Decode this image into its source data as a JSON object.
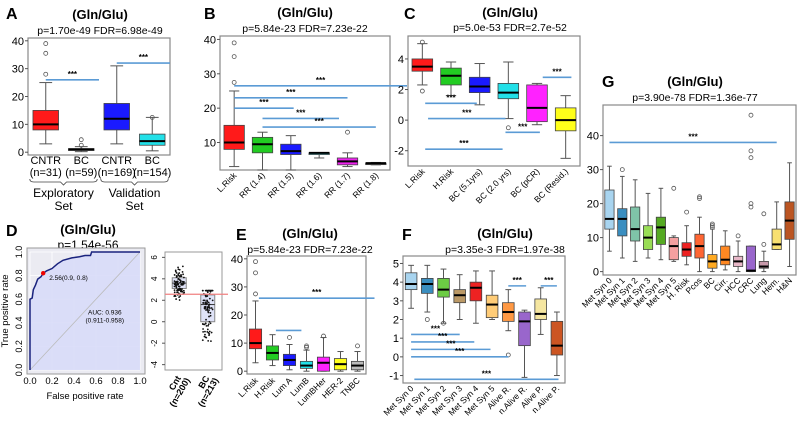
{
  "figure": {
    "common_title": "(Gln/Glu)"
  },
  "chart_data": [
    {
      "panel": "A",
      "type": "box",
      "title": "(Gln/Glu)",
      "stats": "p=1.70e-49  FDR=6.98e-49",
      "ylim": [
        -1,
        41
      ],
      "yticks": [
        0,
        10,
        20,
        30,
        40
      ],
      "categories": [
        "CNTR\n(n=31)",
        "BC\n(n=59)",
        "CNTR\n(n=169)",
        "BC\n(n=154)"
      ],
      "groups": [
        {
          "label": "Exploratory\nSet",
          "span": [
            0,
            1
          ]
        },
        {
          "label": "Validation\nSet",
          "span": [
            2,
            3
          ]
        }
      ],
      "colors": [
        "#ff1a1a",
        "#555555",
        "#1a1aff",
        "#22e0e8"
      ],
      "boxes": [
        {
          "min": 3,
          "q1": 8,
          "median": 10,
          "q3": 15,
          "max": 25,
          "outliers": [
            28,
            35.5,
            39
          ]
        },
        {
          "min": 0.2,
          "q1": 0.6,
          "median": 1,
          "q3": 1.3,
          "max": 2,
          "outliers": [
            2.5,
            4.5
          ]
        },
        {
          "min": 3,
          "q1": 8,
          "median": 12,
          "q3": 17.5,
          "max": 31,
          "outliers": []
        },
        {
          "min": 0.5,
          "q1": 2.5,
          "median": 4,
          "q3": 6.5,
          "max": 12.5,
          "outliers": [
            12.5
          ]
        }
      ],
      "sig": [
        {
          "from": 0.5,
          "to": 2.0,
          "y": 26,
          "label": "***"
        },
        {
          "from": 2.5,
          "to": 4.0,
          "y": 32,
          "label": "***"
        }
      ]
    },
    {
      "panel": "B",
      "type": "box",
      "title": "(Gln/Glu)",
      "stats": "p=5.84e-23   FDR=7.23e-22",
      "ylim": [
        2,
        41
      ],
      "yticks": [
        10,
        20,
        30,
        40
      ],
      "categories": [
        "L.Risk",
        "RR (1.4)",
        "RR (1.5)",
        "RR (1.6)",
        "RR (1.7)",
        "RR (1.8)"
      ],
      "colors": [
        "#ff1a1a",
        "#22cc22",
        "#1a1aff",
        "#22e0e8",
        "#ee22ee",
        "#333333"
      ],
      "boxes": [
        {
          "min": 3,
          "q1": 8,
          "median": 10,
          "q3": 15,
          "max": 25,
          "outliers": [
            27.5,
            35,
            39
          ]
        },
        {
          "min": 2,
          "q1": 7,
          "median": 9.5,
          "q3": 11.5,
          "max": 13,
          "outliers": []
        },
        {
          "min": 2,
          "q1": 6.5,
          "median": 7.5,
          "q3": 9.5,
          "max": 12,
          "outliers": []
        },
        {
          "min": 5.5,
          "q1": 6.5,
          "median": 7,
          "q3": 7,
          "max": 7,
          "outliers": []
        },
        {
          "min": 3,
          "q1": 3.5,
          "median": 4.5,
          "q3": 5.5,
          "max": 7,
          "outliers": [
            13
          ]
        },
        {
          "min": 3.5,
          "q1": 3.7,
          "median": 4,
          "q3": 4,
          "max": 4.2,
          "outliers": []
        }
      ],
      "sig": [
        {
          "from": 0.5,
          "to": 6.6,
          "y": 26.5,
          "label": "***"
        },
        {
          "from": 0.5,
          "to": 4.5,
          "y": 23,
          "label": "***"
        },
        {
          "from": 0.5,
          "to": 2.6,
          "y": 20,
          "label": "***"
        },
        {
          "from": 1.5,
          "to": 4.2,
          "y": 17,
          "label": "***"
        },
        {
          "from": 1.5,
          "to": 5.5,
          "y": 14.5,
          "label": "***"
        }
      ]
    },
    {
      "panel": "C",
      "type": "box",
      "title": "(Gln/Glu)",
      "stats": "p=5.0e-53   FDR=2.7e-52",
      "ylim": [
        -3,
        5.5
      ],
      "yticks": [
        -2,
        0,
        2,
        4
      ],
      "categories": [
        "L.Risk",
        "H.Risk",
        "BC (5.1yrs)",
        "BC (2.0 yrs)",
        "BC (pCR)",
        "BC (Resid.)"
      ],
      "colors": [
        "#ff1a1a",
        "#22cc22",
        "#1a1aff",
        "#22e0e8",
        "#ff22ff",
        "#ffff1a"
      ],
      "boxes": [
        {
          "min": 2.3,
          "q1": 3.2,
          "median": 3.5,
          "q3": 4,
          "max": 5,
          "outliers": [
            5.1,
            1.9
          ]
        },
        {
          "min": 1.6,
          "q1": 2.3,
          "median": 2.9,
          "q3": 3.4,
          "max": 3.8,
          "outliers": []
        },
        {
          "min": 1.0,
          "q1": 1.8,
          "median": 2.2,
          "q3": 2.8,
          "max": 3.7,
          "outliers": []
        },
        {
          "min": 0.1,
          "q1": 1.4,
          "median": 1.8,
          "q3": 2.4,
          "max": 3.8,
          "outliers": [
            -0.5
          ]
        },
        {
          "min": -0.3,
          "q1": -0.1,
          "median": 0.8,
          "q3": 2.3,
          "max": 2.4,
          "outliers": []
        },
        {
          "min": -2.5,
          "q1": -0.7,
          "median": 0,
          "q3": 0.8,
          "max": 1.6,
          "outliers": []
        }
      ],
      "sig": [
        {
          "from": 0.6,
          "to": 2.4,
          "y": 1.1,
          "label": "***"
        },
        {
          "from": 0.7,
          "to": 3.4,
          "y": 0.1,
          "label": "***"
        },
        {
          "from": 0.6,
          "to": 3.3,
          "y": -1.9,
          "label": "***"
        },
        {
          "from": 3.4,
          "to": 4.6,
          "y": -0.8,
          "label": "***"
        },
        {
          "from": 4.7,
          "to": 5.7,
          "y": 2.8,
          "label": "***"
        }
      ]
    },
    {
      "panel": "D",
      "type": "roc",
      "title": "(Gln/Glu)",
      "stats": "p=1.54e-56",
      "xlabel": "False positive rate",
      "ylabel": "True positive rate",
      "xlim": [
        0,
        1
      ],
      "ylim": [
        0,
        1
      ],
      "ticks": [
        0.0,
        0.2,
        0.4,
        0.6,
        0.8,
        1.0
      ],
      "tick_labels": [
        "0.0",
        "0.2",
        "0.4",
        "0.6",
        "0.8",
        "1.0"
      ],
      "fpr": [
        0,
        0,
        0.02,
        0.03,
        0.05,
        0.07,
        0.1,
        0.12,
        0.15,
        0.2,
        0.25,
        0.3,
        0.38,
        0.45,
        0.5,
        0.55,
        0.56,
        0.7,
        0.85,
        1.0
      ],
      "tpr": [
        0,
        0.6,
        0.61,
        0.68,
        0.72,
        0.77,
        0.79,
        0.82,
        0.84,
        0.86,
        0.9,
        0.93,
        0.95,
        0.96,
        0.97,
        0.97,
        1.0,
        1.0,
        1.0,
        1.0
      ],
      "cutoff_point": {
        "fpr": 0.12,
        "tpr": 0.82,
        "label": "2.56(0.9, 0.8)"
      },
      "auc_label": [
        "AUC: 0.936",
        "(0.911-0.958)"
      ],
      "fill_color": "#d8dcf8",
      "line_color": "#1a237e"
    },
    {
      "panel": "D-inset",
      "type": "box-jitter",
      "ylim": [
        -4.5,
        6.5
      ],
      "yticks": [
        -4,
        -2,
        0,
        2,
        4,
        6
      ],
      "categories": [
        "Cnt\n(n=200)",
        "BC\n(n=213)"
      ],
      "boxes": [
        {
          "min": 2,
          "q1": 3.1,
          "median": 3.6,
          "q3": 4.1,
          "max": 5.8
        },
        {
          "min": -3.5,
          "q1": 0,
          "median": 1.6,
          "q3": 2.5,
          "max": 2.9
        }
      ],
      "threshold": 2.56,
      "threshold_color": "#f08080"
    },
    {
      "panel": "E",
      "type": "box",
      "title": "(Gln/Glu)",
      "stats": "p=5.84e-23   FDR=7.23e-22",
      "ylim": [
        -1,
        41
      ],
      "yticks": [
        0,
        10,
        20,
        30,
        40
      ],
      "categories": [
        "L.Risk",
        "H.Risk",
        "Lum A",
        "LumB",
        "LumBHer",
        "HER-2",
        "TNBC"
      ],
      "colors": [
        "#ff1a1a",
        "#22cc22",
        "#1a1aff",
        "#22e0e8",
        "#ff22ff",
        "#ffff1a",
        "#bbbbbb"
      ],
      "boxes": [
        {
          "min": 3,
          "q1": 8,
          "median": 10,
          "q3": 15,
          "max": 25,
          "outliers": [
            27.5,
            35,
            39
          ]
        },
        {
          "min": 2,
          "q1": 4,
          "median": 6.5,
          "q3": 9,
          "max": 13,
          "outliers": []
        },
        {
          "min": 0.5,
          "q1": 2,
          "median": 4,
          "q3": 6,
          "max": 9.5,
          "outliers": [
            12
          ]
        },
        {
          "min": 0,
          "q1": 1,
          "median": 2,
          "q3": 3.5,
          "max": 7.5,
          "outliers": [
            8.5,
            9
          ]
        },
        {
          "min": 0,
          "q1": 0,
          "median": 3,
          "q3": 5,
          "max": 12,
          "outliers": [
            12.5
          ]
        },
        {
          "min": 0,
          "q1": 0.5,
          "median": 2.5,
          "q3": 4.5,
          "max": 7,
          "outliers": []
        },
        {
          "min": 0,
          "q1": 0.5,
          "median": 2,
          "q3": 3.5,
          "max": 7,
          "outliers": [
            9
          ]
        }
      ],
      "sig": [
        {
          "from": 0.7,
          "to": 7.5,
          "y": 26,
          "label": "***"
        },
        {
          "from": 1.7,
          "to": 3.2,
          "y": 14.5,
          "label": ""
        }
      ]
    },
    {
      "panel": "F",
      "type": "box",
      "title": "(Gln/Glu)",
      "stats": "p=3.35e-3   FDR=1.97e-38",
      "ylim": [
        -1.4,
        5.4
      ],
      "yticks": [
        -1,
        0,
        1,
        2,
        3,
        4,
        5
      ],
      "categories": [
        "Met Syn 0",
        "Met Syn 1",
        "Met Syn 2",
        "Met Syn 3",
        "Met Syn 4",
        "Met Syn 5",
        "Alive R.",
        "n.Alive R.",
        "Alive P.",
        "n.Alive P."
      ],
      "colors": [
        "#a8d4ef",
        "#3a8ec0",
        "#6ccc44",
        "#bb9966",
        "#ee2222",
        "#ffcc77",
        "#ff9944",
        "#9966cc",
        "#f5e6a0",
        "#cc5522"
      ],
      "boxes": [
        {
          "min": 2.6,
          "q1": 3.6,
          "median": 3.9,
          "q3": 4.5,
          "max": 4.9,
          "outliers": []
        },
        {
          "min": 2.4,
          "q1": 3.4,
          "median": 3.9,
          "q3": 4.2,
          "max": 4.9,
          "outliers": [
            2
          ]
        },
        {
          "min": 1.8,
          "q1": 3.2,
          "median": 3.6,
          "q3": 4.2,
          "max": 4.7,
          "outliers": [
            1.8
          ]
        },
        {
          "min": 2,
          "q1": 2.9,
          "median": 3.3,
          "q3": 3.6,
          "max": 4.4,
          "outliers": []
        },
        {
          "min": 1.8,
          "q1": 3.0,
          "median": 3.7,
          "q3": 4.0,
          "max": 4.6,
          "outliers": []
        },
        {
          "min": 2,
          "q1": 2.1,
          "median": 2.8,
          "q3": 3.3,
          "max": 4.6,
          "outliers": []
        },
        {
          "min": 1.4,
          "q1": 1.9,
          "median": 2.4,
          "q3": 2.9,
          "max": 3.6,
          "outliers": [
            0.1
          ]
        },
        {
          "min": -1.1,
          "q1": 0.6,
          "median": 1.9,
          "q3": 2.4,
          "max": 2.5,
          "outliers": []
        },
        {
          "min": 1.2,
          "q1": 2.0,
          "median": 2.3,
          "q3": 3.1,
          "max": 3.7,
          "outliers": []
        },
        {
          "min": -1.0,
          "q1": 0.1,
          "median": 0.6,
          "q3": 1.9,
          "max": 2.4,
          "outliers": []
        }
      ],
      "sig": [
        {
          "from": 0.5,
          "to": 3.5,
          "y": 1.2,
          "label": "***"
        },
        {
          "from": 0.5,
          "to": 4.4,
          "y": 0.8,
          "label": "***"
        },
        {
          "from": 0.5,
          "to": 5.4,
          "y": 0.4,
          "label": "***"
        },
        {
          "from": 0.5,
          "to": 6.5,
          "y": 0.0,
          "label": "***"
        },
        {
          "from": 0.7,
          "to": 9.6,
          "y": -1.2,
          "label": "***"
        },
        {
          "from": 6.5,
          "to": 7.6,
          "y": 3.8,
          "label": "***"
        },
        {
          "from": 8.5,
          "to": 9.5,
          "y": 3.8,
          "label": "***"
        }
      ]
    },
    {
      "panel": "G",
      "type": "box",
      "title": "(Gln/Glu)",
      "stats": "p=3.90e-78   FDR=1.36e-77",
      "ylim": [
        -1,
        49
      ],
      "yticks": [
        0,
        10,
        20,
        30,
        40
      ],
      "categories": [
        "Met Syn 0",
        "Met Syn 1",
        "Met Syn 2",
        "Met Syn 3",
        "Met Syn 4",
        "Met Syn 5",
        "H. Risk",
        "Pcos",
        "BC",
        "Cirr.",
        "HCC",
        "CRC",
        "Lung",
        "Hem.",
        "H&N"
      ],
      "colors": [
        "#a8d4ef",
        "#3a8ec0",
        "#7fc4a8",
        "#99dd55",
        "#55aa22",
        "#f4a0a0",
        "#ee2222",
        "#ff6633",
        "#ffaa22",
        "#ff8822",
        "#e8b8c8",
        "#9966cc",
        "#c899aa",
        "#f8e070",
        "#bb5522"
      ],
      "boxes": [
        {
          "min": 6,
          "q1": 12.5,
          "median": 15.5,
          "q3": 24,
          "max": 31,
          "outliers": []
        },
        {
          "min": 4,
          "q1": 10.5,
          "median": 15.5,
          "q3": 18.5,
          "max": 28,
          "outliers": [
            30
          ]
        },
        {
          "min": 3,
          "q1": 9,
          "median": 12.5,
          "q3": 19,
          "max": 27,
          "outliers": []
        },
        {
          "min": 4,
          "q1": 6.5,
          "median": 10,
          "q3": 13.5,
          "max": 23,
          "outliers": []
        },
        {
          "min": 3.5,
          "q1": 8,
          "median": 13,
          "q3": 16,
          "max": 24.5,
          "outliers": []
        },
        {
          "min": 3,
          "q1": 3.5,
          "median": 7.5,
          "q3": 10,
          "max": 10.5,
          "outliers": [
            24.5
          ]
        },
        {
          "min": 2,
          "q1": 4.5,
          "median": 6.5,
          "q3": 8.5,
          "max": 13.5,
          "outliers": [
            17.5
          ]
        },
        {
          "min": 0,
          "q1": 4,
          "median": 7.5,
          "q3": 11,
          "max": 16,
          "outliers": [
            21.5,
            22
          ]
        },
        {
          "min": 0,
          "q1": 1,
          "median": 3,
          "q3": 5,
          "max": 12.5,
          "outliers": [
            13,
            13.5,
            14
          ]
        },
        {
          "min": 0.5,
          "q1": 2,
          "median": 3.5,
          "q3": 7.5,
          "max": 12,
          "outliers": []
        },
        {
          "min": 0,
          "q1": 1.5,
          "median": 3,
          "q3": 4.5,
          "max": 9,
          "outliers": [
            10.5
          ]
        },
        {
          "min": 0,
          "q1": 0,
          "median": 0.3,
          "q3": 7.5,
          "max": 7.5,
          "outliers": [
            19,
            20,
            33.5,
            35.5,
            46
          ]
        },
        {
          "min": 0,
          "q1": 1,
          "median": 1.5,
          "q3": 3,
          "max": 6,
          "outliers": [
            8,
            17
          ]
        },
        {
          "min": 6.5,
          "q1": 6.5,
          "median": 8,
          "q3": 12.5,
          "max": 20.5,
          "outliers": []
        },
        {
          "min": 1.5,
          "q1": 9.5,
          "median": 15,
          "q3": 20.5,
          "max": 32,
          "outliers": []
        }
      ],
      "sig": [
        {
          "from": 0.5,
          "to": 13.5,
          "y": 38,
          "label": "***"
        }
      ]
    }
  ]
}
